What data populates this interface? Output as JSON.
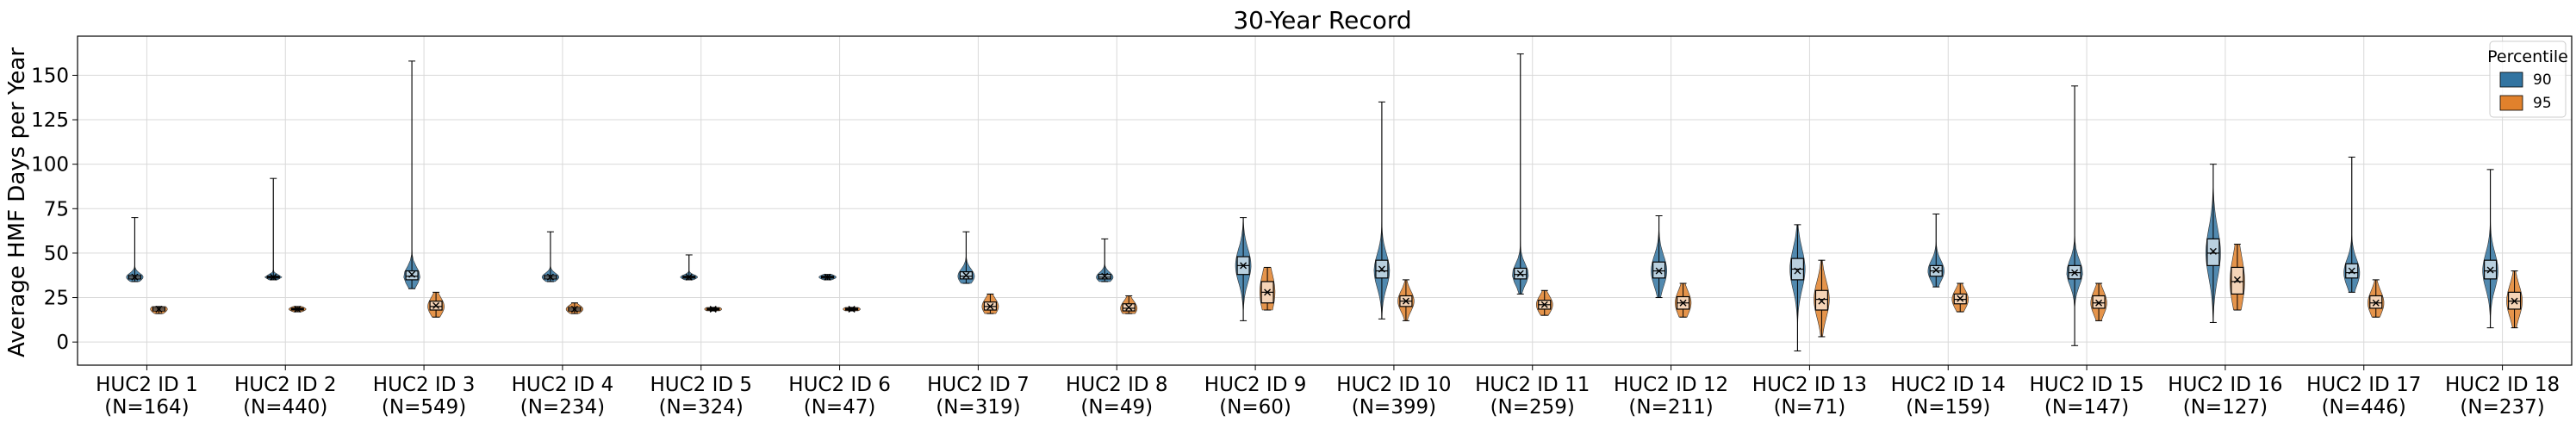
{
  "chart_data": {
    "type": "violin+box",
    "title": "30-Year Record",
    "ylabel": "Average HMF Days per Year",
    "xlabel": "",
    "ylim": [
      -13,
      172
    ],
    "yticks": [
      0,
      25,
      50,
      75,
      100,
      125,
      150
    ],
    "grid": true,
    "legend": {
      "title": "Percentile",
      "placement": "top-right",
      "entries": [
        {
          "name": "90",
          "color": "#3274a1"
        },
        {
          "name": "95",
          "color": "#e1812c"
        }
      ]
    },
    "categories": [
      {
        "label": "HUC2 ID 1",
        "n": "(N=164)"
      },
      {
        "label": "HUC2 ID 2",
        "n": "(N=440)"
      },
      {
        "label": "HUC2 ID 3",
        "n": "(N=549)"
      },
      {
        "label": "HUC2 ID 4",
        "n": "(N=234)"
      },
      {
        "label": "HUC2 ID 5",
        "n": "(N=324)"
      },
      {
        "label": "HUC2 ID 6",
        "n": "(N=47)"
      },
      {
        "label": "HUC2 ID 7",
        "n": "(N=319)"
      },
      {
        "label": "HUC2 ID 8",
        "n": "(N=49)"
      },
      {
        "label": "HUC2 ID 9",
        "n": "(N=60)"
      },
      {
        "label": "HUC2 ID 10",
        "n": "(N=399)"
      },
      {
        "label": "HUC2 ID 11",
        "n": "(N=259)"
      },
      {
        "label": "HUC2 ID 12",
        "n": "(N=211)"
      },
      {
        "label": "HUC2 ID 13",
        "n": "(N=71)"
      },
      {
        "label": "HUC2 ID 14",
        "n": "(N=159)"
      },
      {
        "label": "HUC2 ID 15",
        "n": "(N=147)"
      },
      {
        "label": "HUC2 ID 16",
        "n": "(N=127)"
      },
      {
        "label": "HUC2 ID 17",
        "n": "(N=446)"
      },
      {
        "label": "HUC2 ID 18",
        "n": "(N=237)"
      }
    ],
    "series": [
      {
        "name": "90",
        "stats": [
          {
            "min": 34,
            "q1": 35.5,
            "median": 36.5,
            "mean": 36.5,
            "q3": 37.5,
            "max": 70
          },
          {
            "min": 35,
            "q1": 36,
            "median": 36.5,
            "mean": 36.5,
            "q3": 37,
            "max": 92
          },
          {
            "min": 30,
            "q1": 35,
            "median": 37,
            "mean": 38,
            "q3": 40,
            "max": 158
          },
          {
            "min": 34,
            "q1": 35.5,
            "median": 36.5,
            "mean": 36.5,
            "q3": 37.5,
            "max": 62
          },
          {
            "min": 35,
            "q1": 36,
            "median": 36.5,
            "mean": 36.5,
            "q3": 37,
            "max": 49
          },
          {
            "min": 35,
            "q1": 36,
            "median": 36.5,
            "mean": 36.5,
            "q3": 37,
            "max": 38
          },
          {
            "min": 33,
            "q1": 35.5,
            "median": 37,
            "mean": 37.5,
            "q3": 39.5,
            "max": 62
          },
          {
            "min": 34,
            "q1": 35.5,
            "median": 36.5,
            "mean": 37,
            "q3": 38,
            "max": 58
          },
          {
            "min": 12,
            "q1": 38,
            "median": 43,
            "mean": 43,
            "q3": 48,
            "max": 70
          },
          {
            "min": 13,
            "q1": 36,
            "median": 40,
            "mean": 41,
            "q3": 46,
            "max": 135
          },
          {
            "min": 27,
            "q1": 35.5,
            "median": 38,
            "mean": 38.5,
            "q3": 41.5,
            "max": 162
          },
          {
            "min": 25,
            "q1": 36,
            "median": 40,
            "mean": 40,
            "q3": 45,
            "max": 71
          },
          {
            "min": -5,
            "q1": 35,
            "median": 41,
            "mean": 40,
            "q3": 47,
            "max": 66
          },
          {
            "min": 31,
            "q1": 37,
            "median": 40,
            "mean": 40.5,
            "q3": 43,
            "max": 72
          },
          {
            "min": -2,
            "q1": 35.5,
            "median": 39,
            "mean": 39,
            "q3": 43,
            "max": 144
          },
          {
            "min": 11,
            "q1": 43,
            "median": 50,
            "mean": 51,
            "q3": 58,
            "max": 100
          },
          {
            "min": 28,
            "q1": 36,
            "median": 39,
            "mean": 40,
            "q3": 44,
            "max": 104
          },
          {
            "min": 8,
            "q1": 35.5,
            "median": 40,
            "mean": 40.5,
            "q3": 46,
            "max": 97
          }
        ]
      },
      {
        "name": "95",
        "stats": [
          {
            "min": 16,
            "q1": 17.5,
            "median": 18.5,
            "mean": 18.5,
            "q3": 19.5,
            "max": 20
          },
          {
            "min": 17,
            "q1": 18,
            "median": 18.5,
            "mean": 18.5,
            "q3": 19,
            "max": 20
          },
          {
            "min": 14,
            "q1": 18,
            "median": 20,
            "mean": 20.5,
            "q3": 23,
            "max": 28
          },
          {
            "min": 16,
            "q1": 17.5,
            "median": 18.5,
            "mean": 18.5,
            "q3": 19.5,
            "max": 22
          },
          {
            "min": 17.5,
            "q1": 18,
            "median": 18.5,
            "mean": 18.5,
            "q3": 19,
            "max": 19.5
          },
          {
            "min": 17.5,
            "q1": 18,
            "median": 18.5,
            "mean": 18.5,
            "q3": 19,
            "max": 19.5
          },
          {
            "min": 16,
            "q1": 18,
            "median": 20,
            "mean": 20,
            "q3": 22.5,
            "max": 27
          },
          {
            "min": 16,
            "q1": 17.5,
            "median": 19,
            "mean": 19.5,
            "q3": 21.5,
            "max": 26
          },
          {
            "min": 18,
            "q1": 22,
            "median": 28,
            "mean": 28,
            "q3": 34,
            "max": 42
          },
          {
            "min": 12,
            "q1": 20,
            "median": 23,
            "mean": 23,
            "q3": 26,
            "max": 35
          },
          {
            "min": 15,
            "q1": 18.5,
            "median": 21,
            "mean": 21,
            "q3": 23.5,
            "max": 29
          },
          {
            "min": 14,
            "q1": 18.5,
            "median": 22,
            "mean": 22,
            "q3": 25.5,
            "max": 33
          },
          {
            "min": 3,
            "q1": 18,
            "median": 24,
            "mean": 23,
            "q3": 29,
            "max": 46
          },
          {
            "min": 17,
            "q1": 21.5,
            "median": 24,
            "mean": 24.5,
            "q3": 27,
            "max": 33
          },
          {
            "min": 12,
            "q1": 19,
            "median": 22,
            "mean": 22,
            "q3": 26,
            "max": 33
          },
          {
            "min": 18,
            "q1": 27,
            "median": 34,
            "mean": 35,
            "q3": 42,
            "max": 55
          },
          {
            "min": 14,
            "q1": 19,
            "median": 22,
            "mean": 22,
            "q3": 26,
            "max": 35
          },
          {
            "min": 8,
            "q1": 18.5,
            "median": 23,
            "mean": 23,
            "q3": 28,
            "max": 40
          }
        ]
      }
    ]
  }
}
